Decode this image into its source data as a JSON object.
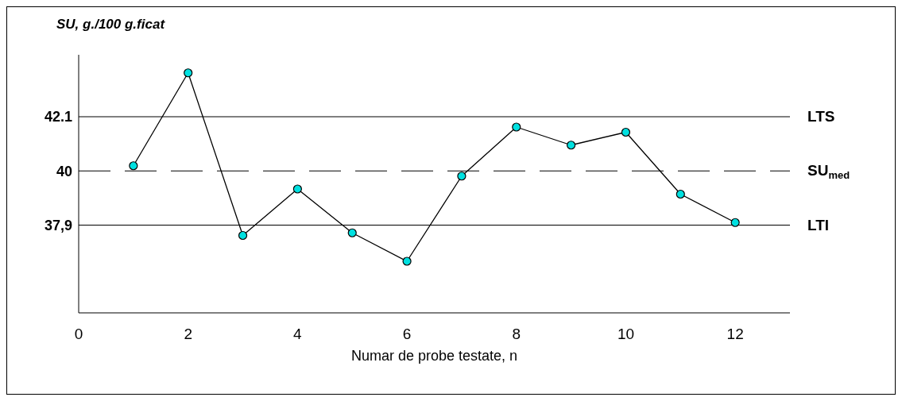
{
  "chart_data": {
    "type": "line",
    "ylabel": "SU, g./100 g.ficat",
    "xlabel": "Numar de probe testate, n",
    "x": [
      1,
      2,
      3,
      4,
      5,
      6,
      7,
      8,
      9,
      10,
      11,
      12
    ],
    "series": [
      {
        "color": "#00e0e0",
        "values": [
          40.2,
          43.8,
          37.5,
          39.3,
          37.6,
          36.5,
          39.8,
          41.7,
          41.0,
          41.5,
          39.1,
          38.0
        ]
      }
    ],
    "xlim": [
      0,
      13
    ],
    "xticks": [
      0,
      2,
      4,
      6,
      8,
      10,
      12
    ],
    "ylim": [
      34.5,
      44.5
    ],
    "yticks": [
      42.1,
      40,
      {
        "value": 37.9,
        "label": "37,9"
      }
    ],
    "ref_lines": [
      {
        "axis": "y",
        "value": 42.1,
        "label": "LTS",
        "line_style": "solid"
      },
      {
        "axis": "y",
        "value": 40,
        "label": "SU$_{med}$",
        "line_style": "dashed"
      },
      {
        "axis": "y",
        "value": 37.9,
        "label": "LTI",
        "line_style": "solid"
      }
    ],
    "marker": "circle",
    "line_style": "solid",
    "grid": false,
    "legend": false
  }
}
